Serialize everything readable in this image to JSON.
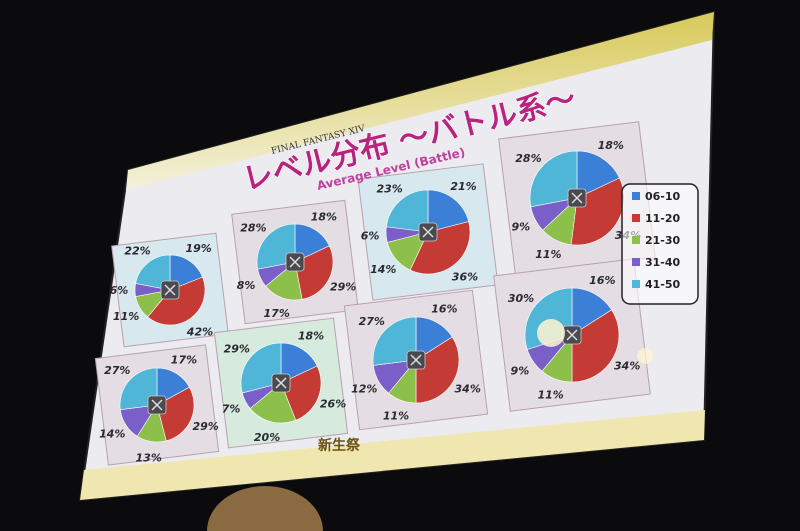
{
  "slide": {
    "logo": "FINAL FANTASY XIV",
    "title": "レベル分布 ～バトル系～",
    "subtitle": "Average Level (Battle)",
    "footer_logo": "新生祭"
  },
  "chart_data": {
    "type": "pie",
    "legend_position": "right",
    "categories": [
      "06-10",
      "11-20",
      "21-30",
      "31-40",
      "41-50"
    ],
    "colors": [
      "#3b7fd6",
      "#c43a35",
      "#8cc04a",
      "#7a5fc8",
      "#4fb6d8"
    ],
    "pies": [
      {
        "icon": "crossed-swords-icon",
        "values": [
          19,
          42,
          11,
          6,
          22
        ]
      },
      {
        "icon": "fist-icon",
        "values": [
          18,
          29,
          17,
          8,
          28
        ]
      },
      {
        "icon": "axes-icon",
        "values": [
          21,
          36,
          14,
          6,
          23
        ]
      },
      {
        "icon": "spear-icon",
        "values": [
          18,
          34,
          11,
          9,
          28
        ]
      },
      {
        "icon": "bow-icon",
        "values": [
          17,
          29,
          13,
          14,
          27
        ]
      },
      {
        "icon": "staff-icon",
        "values": [
          18,
          26,
          20,
          7,
          29
        ]
      },
      {
        "icon": "claw-icon",
        "values": [
          16,
          34,
          11,
          12,
          27
        ]
      },
      {
        "icon": "book-icon",
        "values": [
          16,
          34,
          11,
          9,
          30
        ]
      }
    ]
  }
}
